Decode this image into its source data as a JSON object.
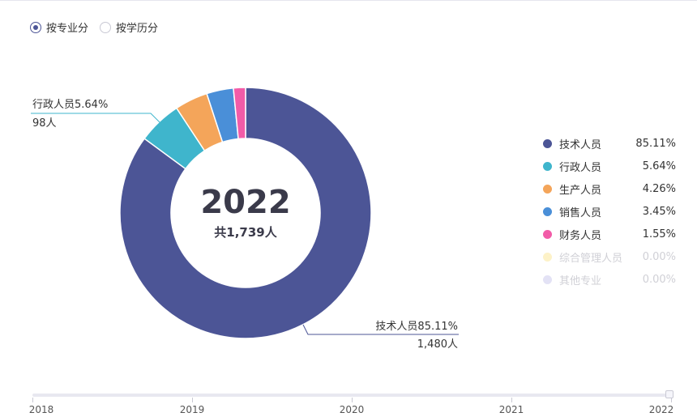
{
  "filter": {
    "options": [
      {
        "label": "按专业分",
        "selected": true
      },
      {
        "label": "按学历分",
        "selected": false
      }
    ]
  },
  "chart_data": {
    "type": "pie",
    "donut": true,
    "center": {
      "year": "2022",
      "total": "共1,739人"
    },
    "legend_position": "right",
    "series": [
      {
        "name": "技术人员",
        "percent": 85.11,
        "percent_label": "85.11%",
        "color": "#4c5596",
        "count": "1,480人",
        "callout": "技术人员85.11%"
      },
      {
        "name": "行政人员",
        "percent": 5.64,
        "percent_label": "5.64%",
        "color": "#3fb5cc",
        "count": "98人",
        "callout": "行政人员5.64%"
      },
      {
        "name": "生产人员",
        "percent": 4.26,
        "percent_label": "4.26%",
        "color": "#f4a55a"
      },
      {
        "name": "销售人员",
        "percent": 3.45,
        "percent_label": "3.45%",
        "color": "#4a8fd8"
      },
      {
        "name": "财务人员",
        "percent": 1.55,
        "percent_label": "1.55%",
        "color": "#f25ca8"
      },
      {
        "name": "综合管理人员",
        "percent": 0.0,
        "percent_label": "0.00%",
        "color": "#fdf2c8",
        "faded": true
      },
      {
        "name": "其他专业",
        "percent": 0.0,
        "percent_label": "0.00%",
        "color": "#e3e2f5",
        "faded": true
      }
    ]
  },
  "timeline": {
    "years": [
      "2018",
      "2019",
      "2020",
      "2021",
      "2022"
    ],
    "selected": "2022"
  }
}
